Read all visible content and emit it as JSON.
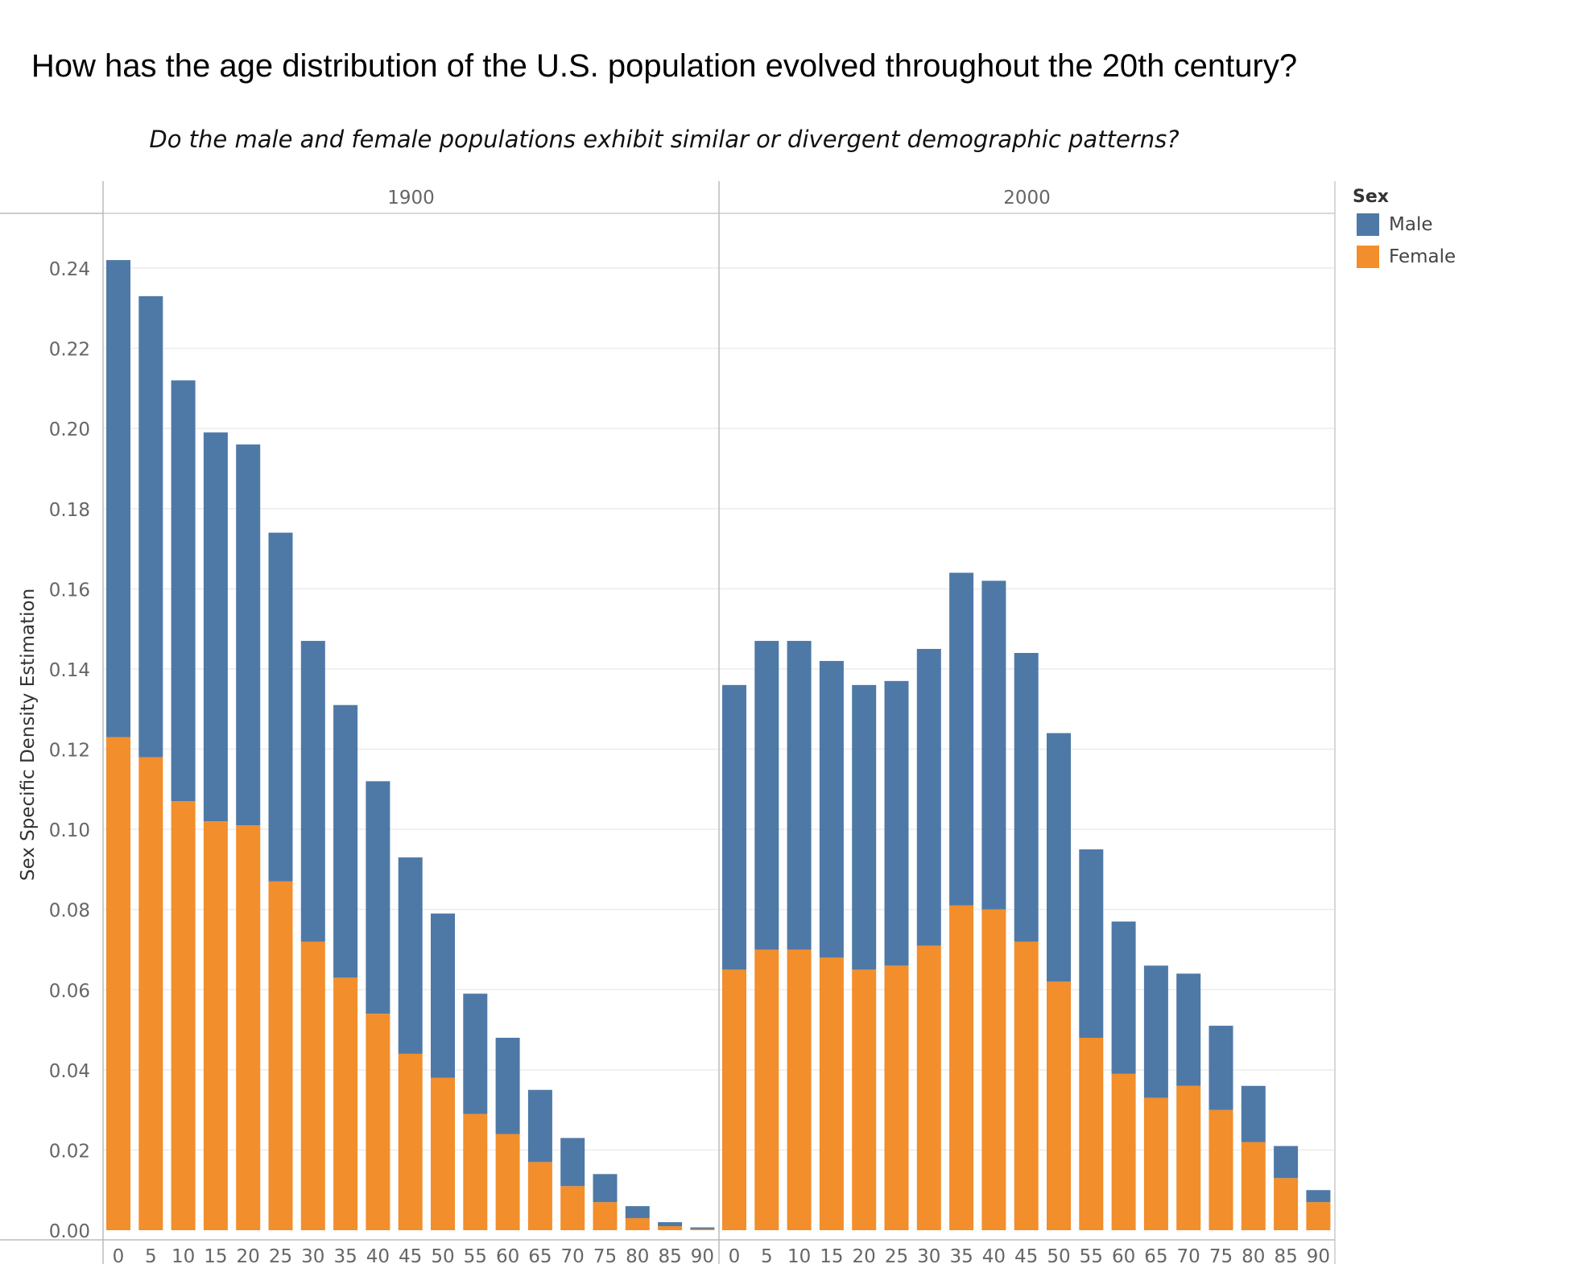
{
  "title": "How has the age distribution of the U.S. population evolved throughout the 20th century?",
  "subtitle": "Do the male and female populations exhibit similar or divergent demographic patterns?",
  "legend": {
    "title": "Sex",
    "items": [
      {
        "label": "Male",
        "color": "#4e79a7"
      },
      {
        "label": "Female",
        "color": "#f28e2b"
      }
    ]
  },
  "chart_data": {
    "type": "bar",
    "stacked": true,
    "ylabel": "Sex Specific Density Estimation",
    "xlabel": "",
    "ylim": [
      0,
      0.24
    ],
    "yticks": [
      "0.00",
      "0.02",
      "0.04",
      "0.06",
      "0.08",
      "0.10",
      "0.12",
      "0.14",
      "0.16",
      "0.18",
      "0.20",
      "0.22",
      "0.24"
    ],
    "grid": true,
    "legend_position": "right",
    "categories": [
      "0",
      "5",
      "10",
      "15",
      "20",
      "25",
      "30",
      "35",
      "40",
      "45",
      "50",
      "55",
      "60",
      "65",
      "70",
      "75",
      "80",
      "85",
      "90"
    ],
    "panels": [
      {
        "label": "1900",
        "series": [
          {
            "name": "Female",
            "values": [
              0.123,
              0.118,
              0.107,
              0.102,
              0.101,
              0.087,
              0.072,
              0.063,
              0.054,
              0.044,
              0.038,
              0.029,
              0.024,
              0.017,
              0.011,
              0.007,
              0.003,
              0.001,
              0.0003
            ]
          },
          {
            "name": "Male",
            "values": [
              0.119,
              0.115,
              0.105,
              0.097,
              0.095,
              0.087,
              0.075,
              0.068,
              0.058,
              0.049,
              0.041,
              0.03,
              0.024,
              0.018,
              0.012,
              0.007,
              0.003,
              0.001,
              0.0004
            ]
          }
        ]
      },
      {
        "label": "2000",
        "series": [
          {
            "name": "Female",
            "values": [
              0.065,
              0.07,
              0.07,
              0.068,
              0.065,
              0.066,
              0.071,
              0.081,
              0.08,
              0.072,
              0.062,
              0.048,
              0.039,
              0.033,
              0.036,
              0.03,
              0.022,
              0.013,
              0.007
            ]
          },
          {
            "name": "Male",
            "values": [
              0.071,
              0.077,
              0.077,
              0.074,
              0.071,
              0.071,
              0.074,
              0.083,
              0.082,
              0.072,
              0.062,
              0.047,
              0.038,
              0.033,
              0.028,
              0.021,
              0.014,
              0.008,
              0.003
            ]
          }
        ]
      }
    ]
  }
}
